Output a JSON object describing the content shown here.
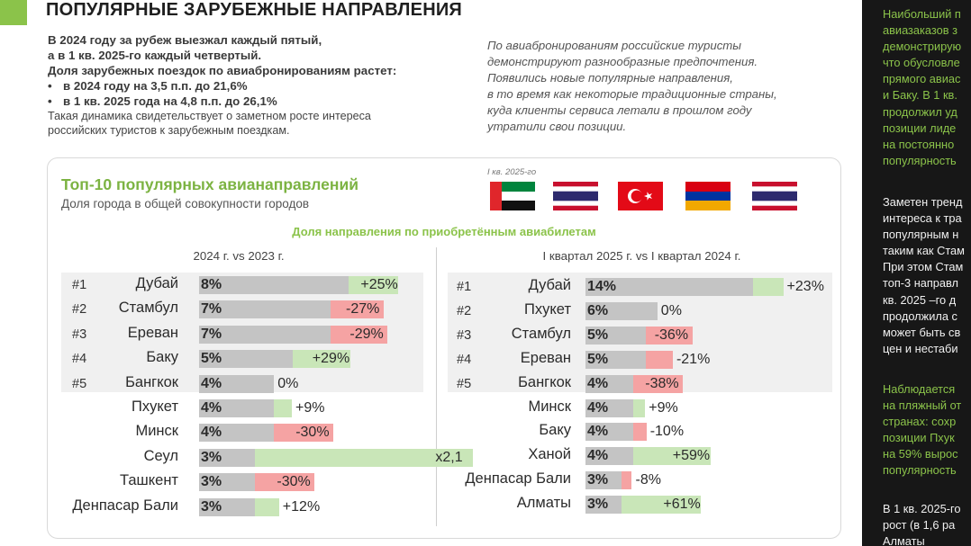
{
  "header": {
    "title": "ПОПУЛЯРНЫЕ ЗАРУБЕЖНЫЕ НАПРАВЛЕНИЯ",
    "accent_color": "#8bc34a"
  },
  "intro": {
    "line1": "В 2024 году за рубеж выезжал  каждый пятый,",
    "line2": "а в 1 кв.  2025-го  каждый четвертый.",
    "line3": "Доля зарубежных поездок по авиабронированиям растет:",
    "bullets": [
      "в 2024 году  на 3,5 п.п. до 21,6%",
      "в 1 кв. 2025 года на 4,8 п.п. до 26,1%"
    ],
    "plain1": "Такая динамика свидетельствует о заметном росте интереса",
    "plain2": "российских туристов к зарубежным поездкам."
  },
  "quote": {
    "lines": [
      "По авиабронированиям российские туристы",
      "демонстрируют разнообразные предпочтения.",
      "Появились новые популярные направления,",
      "в то время как некоторые традиционные страны,",
      "куда клиенты сервиса летали в прошлом году",
      "утратили свои позиции."
    ]
  },
  "chart_card": {
    "title": "Топ-10 популярных авианаправлений",
    "subtitle": "Доля города в общей совокупности городов",
    "flag_caption": "I кв. 2025-го",
    "flags": [
      "uae-flag",
      "thailand-flag",
      "turkey-flag",
      "armenia-flag",
      "thailand-flag"
    ],
    "share_title": "Доля направления по приобретённым авиабилетам"
  },
  "chart_data": [
    {
      "type": "bar",
      "title": "2024 г. vs 2023 г.",
      "ranks": [
        "#1",
        "#2",
        "#3",
        "#4",
        "#5"
      ],
      "categories": [
        "Дубай",
        "Стамбул",
        "Ереван",
        "Баку",
        "Бангкок",
        "Пхукет",
        "Минск",
        "Сеул",
        "Ташкент",
        "Денпасар Бали"
      ],
      "share_labels": [
        "8%",
        "7%",
        "7%",
        "5%",
        "4%",
        "4%",
        "4%",
        "3%",
        "3%",
        "3%"
      ],
      "share_values": [
        8,
        7,
        7,
        5,
        4,
        4,
        4,
        3,
        3,
        3
      ],
      "change_labels": [
        "+25%",
        "-27%",
        "-29%",
        "+29%",
        "0%",
        "+9%",
        "-30%",
        "x2,1",
        "-30%",
        "+12%"
      ],
      "change_values": [
        25,
        -27,
        -29,
        29,
        0,
        9,
        -30,
        110,
        -30,
        12
      ]
    },
    {
      "type": "bar",
      "title": "I квартал 2025 г. vs I квартал 2024 г.",
      "ranks": [
        "#1",
        "#2",
        "#3",
        "#4",
        "#5"
      ],
      "categories": [
        "Дубай",
        "Пхукет",
        "Стамбул",
        "Ереван",
        "Бангкок",
        "Минск",
        "Баку",
        "Ханой",
        "Денпасар Бали",
        "Алматы"
      ],
      "share_labels": [
        "14%",
        "6%",
        "5%",
        "5%",
        "4%",
        "4%",
        "4%",
        "4%",
        "3%",
        "3%"
      ],
      "share_values": [
        14,
        6,
        5,
        5,
        4,
        4,
        4,
        4,
        3,
        3
      ],
      "change_labels": [
        "+23%",
        "0%",
        "-36%",
        "-21%",
        "-38%",
        "+9%",
        "-10%",
        "+59%",
        "-8%",
        "+61%"
      ],
      "change_values": [
        23,
        0,
        -36,
        -21,
        -38,
        9,
        -10,
        59,
        -8,
        61
      ]
    }
  ],
  "colors": {
    "positive": "#c9e6b8",
    "negative": "#f5a3a3",
    "share_bar": "#c4c4c4",
    "title_green": "#7cb342",
    "sidebar_bg": "#171717"
  },
  "sidebar": {
    "para1": [
      "Наибольший п",
      "авиазаказов з",
      "демонстрирую",
      "что обусловле",
      "прямого авиас",
      "и Баку. В 1 кв.",
      "продолжил уд",
      "позиции лиде",
      "на постоянно",
      "популярность"
    ],
    "para2": [
      "Заметен тренд",
      "интереса к тра",
      "популярным н",
      "таким как Стам",
      "При этом Стам",
      "топ-3 направл",
      "кв. 2025 –го д",
      "продолжила с",
      "может быть св",
      "цен и нестаби"
    ],
    "para3": [
      "Наблюдается",
      "на пляжный от",
      "странах: сохр",
      "позиции Пхук",
      "на 59% вырос",
      "популярность"
    ],
    "para4": [
      "В 1 кв. 2025-го",
      "рост  (в 1,6 ра",
      "Алматы"
    ]
  }
}
